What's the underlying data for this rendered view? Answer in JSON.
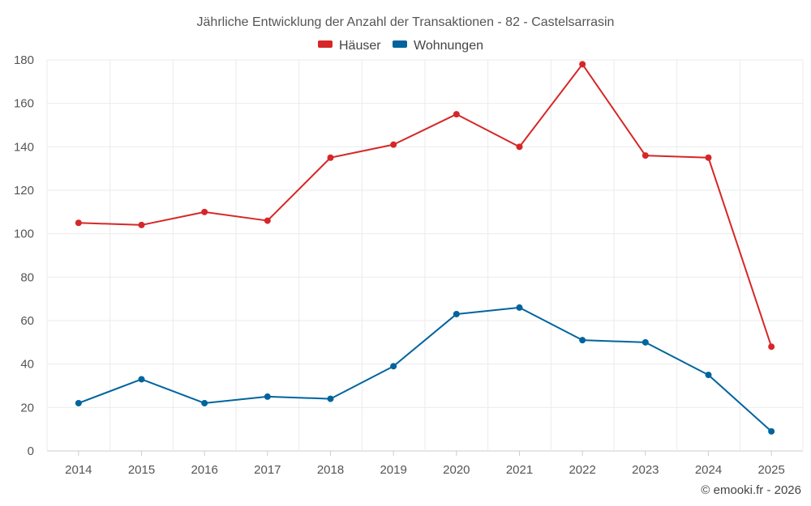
{
  "chart_data": {
    "type": "line",
    "title": "Jährliche Entwicklung der Anzahl der Transaktionen - 82 - Castelsarrasin",
    "categories": [
      "2014",
      "2015",
      "2016",
      "2017",
      "2018",
      "2019",
      "2020",
      "2021",
      "2022",
      "2023",
      "2024",
      "2025"
    ],
    "series": [
      {
        "name": "Häuser",
        "color": "#d62728",
        "values": [
          105,
          104,
          110,
          106,
          135,
          141,
          155,
          140,
          178,
          136,
          135,
          48
        ]
      },
      {
        "name": "Wohnungen",
        "color": "#00649e",
        "values": [
          22,
          33,
          22,
          25,
          24,
          39,
          63,
          66,
          51,
          50,
          35,
          9
        ]
      }
    ],
    "xlabel": "",
    "ylabel": "",
    "ylim": [
      0,
      180
    ],
    "yticks": [
      0,
      20,
      40,
      60,
      80,
      100,
      120,
      140,
      160,
      180
    ],
    "grid": true,
    "legend_position": "top-center"
  },
  "credit": "© emooki.fr - 2026"
}
